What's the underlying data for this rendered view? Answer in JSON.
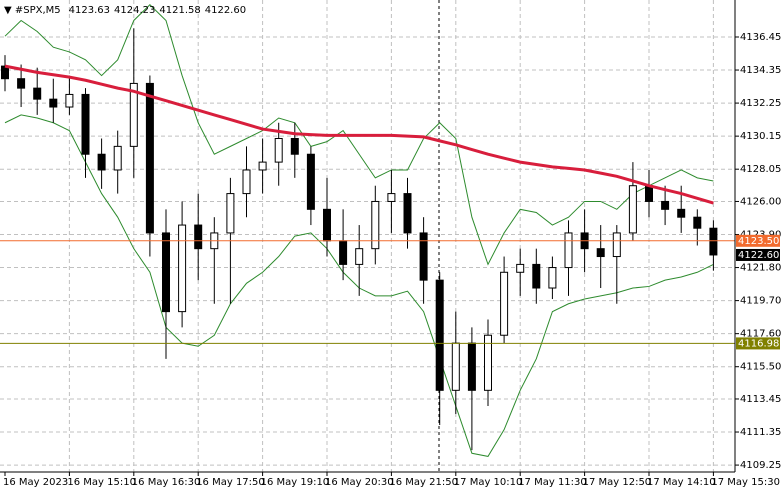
{
  "chart_data": {
    "type": "candlestick",
    "symbol": "#SPX,M5",
    "info": [
      "4123.63",
      "4124.23",
      "4121.58",
      "4122.60"
    ],
    "categories": [
      "16 May 2023",
      null,
      null,
      null,
      "16 May 15:10",
      null,
      null,
      null,
      "16 May 16:30",
      null,
      null,
      null,
      "16 May 17:50",
      null,
      null,
      null,
      "16 May 19:10",
      null,
      null,
      null,
      "16 May 20:30",
      null,
      null,
      null,
      "16 May 21:50",
      null,
      null,
      null,
      "17 May 10:10",
      null,
      null,
      null,
      "17 May 11:30",
      null,
      null,
      null,
      "17 May 12:50",
      null,
      null,
      null,
      "17 May 14:10",
      null,
      null,
      null,
      "17 May 15:30"
    ],
    "open": [
      4134.6,
      4133.8,
      4133.2,
      4132.5,
      4132.0,
      4132.8,
      4129.0,
      4128.0,
      4129.5,
      4133.5,
      4124.0,
      4119.0,
      4124.5,
      4123.0,
      4124.0,
      4126.5,
      4128.0,
      4128.5,
      4130.0,
      4129.0,
      4125.5,
      4123.5,
      4122.0,
      4123.0,
      4126.0,
      4126.5,
      4124.0,
      4121.0,
      4114.0,
      4117.0,
      4114.0,
      4117.5,
      4121.5,
      4122.0,
      4120.5,
      4121.8,
      4124.0,
      4123.0,
      4122.5,
      4124.0,
      4127.0,
      4126.0,
      4125.5,
      4125.0,
      4124.3
    ],
    "high": [
      4135.3,
      4134.7,
      4134.5,
      4133.8,
      4134.0,
      4133.2,
      4130.0,
      4130.5,
      4137.0,
      4134.0,
      4125.5,
      4126.0,
      4126.5,
      4125.0,
      4127.5,
      4129.5,
      4130.0,
      4131.0,
      4131.0,
      4129.5,
      4127.5,
      4125.5,
      4124.5,
      4127.0,
      4128.0,
      4127.5,
      4125.0,
      4121.5,
      4119.0,
      4118.0,
      4118.5,
      4122.5,
      4123.0,
      4123.0,
      4122.5,
      4124.8,
      4125.5,
      4124.5,
      4124.5,
      4128.5,
      4128.0,
      4127.0,
      4127.0,
      4125.5,
      4124.8
    ],
    "low": [
      4133.0,
      4132.0,
      4131.5,
      4131.0,
      4131.5,
      4127.5,
      4126.8,
      4126.5,
      4127.5,
      4122.5,
      4116.0,
      4118.0,
      4121.0,
      4119.5,
      4119.5,
      4125.0,
      4126.5,
      4127.0,
      4127.5,
      4124.5,
      4122.5,
      4121.0,
      4120.0,
      4122.0,
      4124.0,
      4123.0,
      4119.5,
      4111.8,
      4112.5,
      4110.2,
      4113.0,
      4117.0,
      4120.0,
      4119.5,
      4119.8,
      4120.0,
      4121.5,
      4120.5,
      4119.5,
      4123.5,
      4125.0,
      4124.5,
      4124.0,
      4123.2,
      4121.6
    ],
    "close": [
      4133.8,
      4133.2,
      4132.5,
      4132.0,
      4132.8,
      4129.0,
      4128.0,
      4129.5,
      4133.5,
      4124.0,
      4119.0,
      4124.5,
      4123.0,
      4124.0,
      4126.5,
      4128.0,
      4128.5,
      4130.0,
      4129.0,
      4125.5,
      4123.5,
      4122.0,
      4123.0,
      4126.0,
      4126.5,
      4124.0,
      4121.0,
      4114.0,
      4117.0,
      4114.0,
      4117.5,
      4121.5,
      4122.0,
      4120.5,
      4121.8,
      4124.0,
      4123.0,
      4122.5,
      4124.0,
      4127.0,
      4126.0,
      4125.5,
      4125.0,
      4124.3,
      4122.6
    ],
    "ma": [
      4134.6,
      4134.4,
      4134.2,
      4134.05,
      4133.9,
      4133.7,
      4133.45,
      4133.2,
      4133.0,
      4132.7,
      4132.4,
      4132.1,
      4131.8,
      4131.5,
      4131.2,
      4130.9,
      4130.6,
      4130.45,
      4130.3,
      4130.25,
      4130.2,
      4130.2,
      4130.2,
      4130.2,
      4130.2,
      4130.15,
      4130.1,
      4129.85,
      4129.6,
      4129.3,
      4129.0,
      4128.75,
      4128.5,
      4128.35,
      4128.2,
      4128.1,
      4128.0,
      4127.8,
      4127.6,
      4127.3,
      4127.0,
      4126.75,
      4126.5,
      4126.2,
      4125.9
    ],
    "ma_color": "#d81e3c",
    "bb_upper": [
      4136.5,
      4137.5,
      4136.8,
      4135.8,
      4135.5,
      4135.0,
      4134.0,
      4135.0,
      4137.5,
      4138.5,
      4137.5,
      4134.0,
      4131.0,
      4129.0,
      4129.5,
      4130.0,
      4130.5,
      4131.3,
      4131.0,
      4129.5,
      4129.8,
      4130.5,
      4129.0,
      4127.5,
      4128.0,
      4128.0,
      4130.0,
      4131.0,
      4130.0,
      4125.0,
      4122.0,
      4124.0,
      4125.5,
      4125.3,
      4124.5,
      4125.0,
      4126.0,
      4126.0,
      4125.5,
      4126.5,
      4127.0,
      4127.5,
      4128.0,
      4127.5,
      4127.3
    ],
    "bb_lower": [
      4131.0,
      4131.5,
      4131.3,
      4131.0,
      4130.5,
      4128.5,
      4126.5,
      4125.0,
      4123.0,
      4121.5,
      4118.0,
      4117.0,
      4116.8,
      4117.5,
      4119.5,
      4120.8,
      4121.5,
      4122.5,
      4123.8,
      4124.0,
      4123.0,
      4121.5,
      4120.5,
      4120.0,
      4120.0,
      4120.3,
      4119.0,
      4116.0,
      4113.0,
      4110.0,
      4109.8,
      4111.5,
      4114.0,
      4116.0,
      4119.0,
      4119.5,
      4119.8,
      4120.0,
      4120.2,
      4120.5,
      4120.6,
      4121.0,
      4121.2,
      4121.5,
      4122.0
    ],
    "bb_color": "#2e8b2e",
    "candle_color": "#000000",
    "ylim": [
      4108.81,
      4138.8
    ],
    "yticks": [
      4136.45,
      4134.35,
      4132.25,
      4130.15,
      4128.05,
      {
        "value": 4126.0,
        "label": "4126.00"
      },
      {
        "value": 4123.9,
        "label": "4123.90"
      },
      {
        "value": 4121.8,
        "label": "4121.80"
      },
      {
        "value": 4119.7,
        "label": "4119.70"
      },
      {
        "value": 4117.6,
        "label": "4117.60"
      },
      {
        "value": 4115.5,
        "label": "4115.50"
      },
      4113.45,
      4111.35,
      4109.25
    ],
    "grid": true,
    "levels": [
      {
        "value": 4123.5,
        "label": "4123.50",
        "color": "#f26b2e"
      },
      {
        "value": 4116.98,
        "label": "4116.98",
        "color": "#808000"
      }
    ],
    "last_price": {
      "value": 4122.6,
      "label": "4122.60",
      "color": "#000000"
    }
  }
}
